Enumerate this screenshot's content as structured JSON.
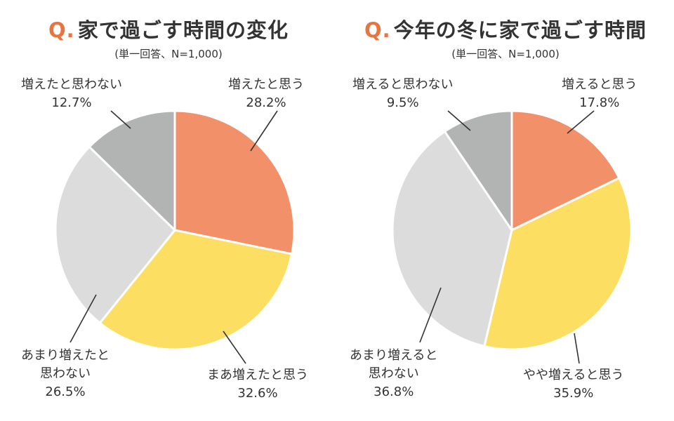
{
  "colors": {
    "accent": "#e8743f",
    "slice_orange": "#f2906a",
    "slice_yellow": "#fcde62",
    "slice_lightgray": "#dcdcdc",
    "slice_gray": "#b2b3b3",
    "text": "#333333"
  },
  "chart_data": [
    {
      "type": "pie",
      "title_prefix": "Q.",
      "title": "家で過ごす時間の変化",
      "subtitle": "(単一回答、N=1,000)",
      "slices": [
        {
          "label": [
            "増えたと思う"
          ],
          "value": 28.2,
          "value_label": "28.2%",
          "color": "#f2906a"
        },
        {
          "label": [
            "まあ増えたと思う"
          ],
          "value": 32.6,
          "value_label": "32.6%",
          "color": "#fcde62"
        },
        {
          "label": [
            "あまり増えたと",
            "思わない"
          ],
          "value": 26.5,
          "value_label": "26.5%",
          "color": "#dcdcdc"
        },
        {
          "label": [
            "増えたと思わない"
          ],
          "value": 12.7,
          "value_label": "12.7%",
          "color": "#b2b3b3"
        }
      ]
    },
    {
      "type": "pie",
      "title_prefix": "Q.",
      "title": "今年の冬に家で過ごす時間",
      "subtitle": "(単一回答、N=1,000)",
      "slices": [
        {
          "label": [
            "増えると思う"
          ],
          "value": 17.8,
          "value_label": "17.8%",
          "color": "#f2906a"
        },
        {
          "label": [
            "やや増えると思う"
          ],
          "value": 35.9,
          "value_label": "35.9%",
          "color": "#fcde62"
        },
        {
          "label": [
            "あまり増えると",
            "思わない"
          ],
          "value": 36.8,
          "value_label": "36.8%",
          "color": "#dcdcdc"
        },
        {
          "label": [
            "増えると思わない"
          ],
          "value": 9.5,
          "value_label": "9.5%",
          "color": "#b2b3b3"
        }
      ]
    }
  ]
}
